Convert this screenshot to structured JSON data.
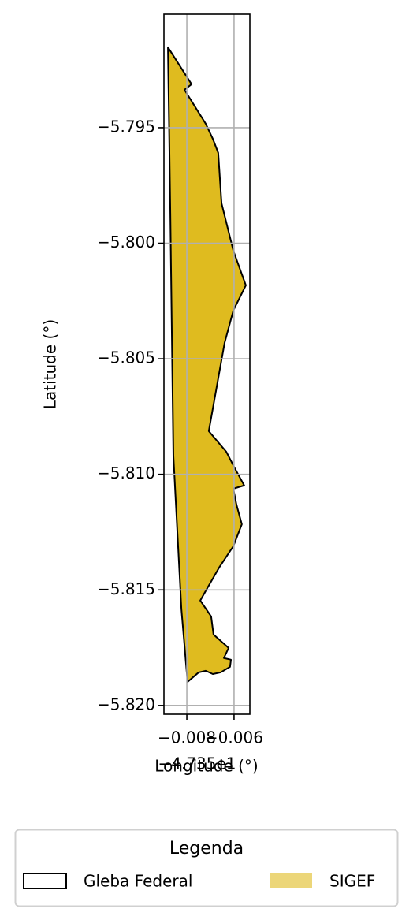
{
  "chart_data": {
    "type": "polygon",
    "xlabel": "Longitude (°)",
    "ylabel": "Latitude (°)",
    "x_offset_label": "−4.735e1",
    "legend_title": "Legenda",
    "legend": "lower center",
    "grid": true,
    "xlim": [
      -0.00897,
      -0.00533
    ],
    "ylim": [
      -5.82038,
      -5.79009
    ],
    "xticks": [
      {
        "value": -0.008,
        "label": "−0.008"
      },
      {
        "value": -0.006,
        "label": "−0.006"
      }
    ],
    "yticks": [
      {
        "value": -5.795,
        "label": "−5.795"
      },
      {
        "value": -5.8,
        "label": "−5.800"
      },
      {
        "value": -5.805,
        "label": "−5.805"
      },
      {
        "value": -5.81,
        "label": "−5.810"
      },
      {
        "value": -5.815,
        "label": "−5.815"
      },
      {
        "value": -5.82,
        "label": "−5.820"
      }
    ],
    "series": [
      {
        "name": "Gleba Federal",
        "color": "#000000"
      },
      {
        "name": "SIGEF",
        "color": "#dfbb1f"
      }
    ],
    "x": [
      -0.0088,
      -0.0078,
      -0.0081,
      -0.0072,
      -0.0069,
      -0.00667,
      -0.00653,
      -0.00603,
      -0.0055,
      -0.00603,
      -0.0064,
      -0.00673,
      -0.00707,
      -0.00633,
      -0.00597,
      -0.00557,
      -0.00603,
      -0.0059,
      -0.00567,
      -0.00603,
      -0.00663,
      -0.00717,
      -0.00743,
      -0.00697,
      -0.00687,
      -0.00623,
      -0.00643,
      -0.00613,
      -0.00617,
      -0.00657,
      -0.0069,
      -0.0072,
      -0.0075,
      -0.00797,
      -0.00823,
      -0.00857,
      -0.0087
    ],
    "y": [
      -5.79152,
      -5.79312,
      -5.79336,
      -5.79483,
      -5.79548,
      -5.79609,
      -5.79827,
      -5.80032,
      -5.80182,
      -5.80291,
      -5.80431,
      -5.80619,
      -5.80813,
      -5.80902,
      -5.80973,
      -5.81048,
      -5.81062,
      -5.8113,
      -5.81216,
      -5.81311,
      -5.81403,
      -5.81499,
      -5.81546,
      -5.81615,
      -5.81693,
      -5.81751,
      -5.81795,
      -5.81802,
      -5.81833,
      -5.81857,
      -5.81864,
      -5.8185,
      -5.81857,
      -5.81898,
      -5.81584,
      -5.80919,
      -5.79868
    ]
  }
}
